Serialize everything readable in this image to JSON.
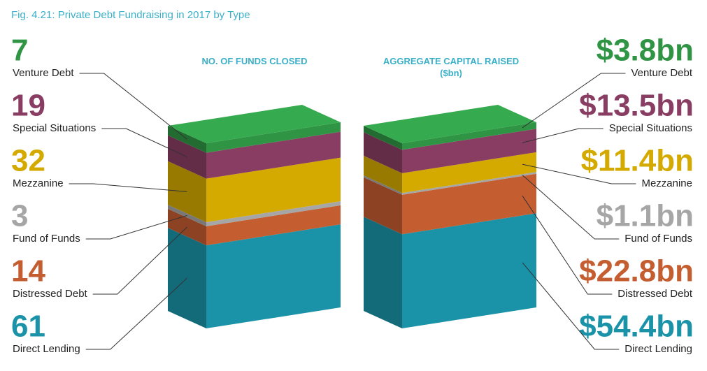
{
  "chart_data": {
    "type": "bar",
    "stacked": true,
    "title": "Fig. 4.21: Private Debt Fundraising in 2017 by Type",
    "categories": [
      "NO. OF FUNDS CLOSED",
      "AGGREGATE CAPITAL RAISED ($bn)"
    ],
    "series": [
      {
        "name": "Venture Debt",
        "color": "#2f9444",
        "values": [
          7,
          3.8
        ],
        "value_labels": [
          "7",
          "$3.8bn"
        ]
      },
      {
        "name": "Special Situations",
        "color": "#8a3d62",
        "values": [
          19,
          13.5
        ],
        "value_labels": [
          "19",
          "$13.5bn"
        ]
      },
      {
        "name": "Mezzanine",
        "color": "#d4aa00",
        "values": [
          32,
          11.4
        ],
        "value_labels": [
          "32",
          "$11.4bn"
        ]
      },
      {
        "name": "Fund of Funds",
        "color": "#a6a6a6",
        "values": [
          3,
          1.1
        ],
        "value_labels": [
          "3",
          "$1.1bn"
        ]
      },
      {
        "name": "Distressed Debt",
        "color": "#c45d30",
        "values": [
          14,
          22.8
        ],
        "value_labels": [
          "14",
          "$22.8bn"
        ]
      },
      {
        "name": "Direct Lending",
        "color": "#1a93a8",
        "values": [
          61,
          54.4
        ],
        "value_labels": [
          "61",
          "$54.4bn"
        ]
      }
    ]
  }
}
